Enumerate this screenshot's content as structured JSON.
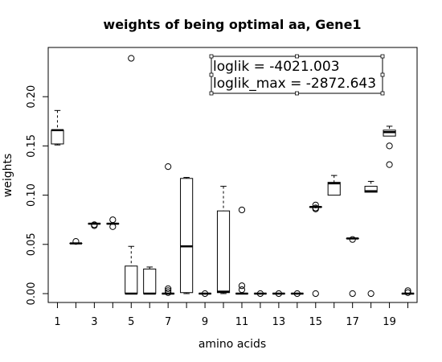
{
  "chart_data": {
    "type": "boxplot",
    "title": "weights of being optimal aa, Gene1",
    "xlabel": "amino acids",
    "ylabel": "weights",
    "xlim": [
      0.5,
      20.5
    ],
    "ylim": [
      -0.009,
      0.25
    ],
    "x_ticks": [
      1,
      2,
      3,
      4,
      5,
      6,
      7,
      8,
      9,
      10,
      11,
      12,
      13,
      14,
      15,
      16,
      17,
      18,
      19,
      20
    ],
    "x_tick_labels": [
      "1",
      "3",
      "5",
      "7",
      "9",
      "11",
      "13",
      "15",
      "17",
      "19"
    ],
    "x_tick_label_positions": [
      1,
      3,
      5,
      7,
      9,
      11,
      13,
      15,
      17,
      19
    ],
    "y_ticks": [
      0.0,
      0.05,
      0.1,
      0.15,
      0.2
    ],
    "y_tick_labels": [
      "0.00",
      "0.05",
      "0.10",
      "0.15",
      "0.20"
    ],
    "grid": false,
    "annotations": [
      {
        "text": "loglik = -4021.003"
      },
      {
        "text": "loglik_max = -2872.643"
      }
    ],
    "boxes": [
      {
        "x": 1,
        "min": 0.151,
        "q1": 0.152,
        "median": 0.166,
        "q3": 0.166,
        "max": 0.186,
        "outliers": []
      },
      {
        "x": 2,
        "min": 0.051,
        "q1": 0.051,
        "median": 0.051,
        "q3": 0.051,
        "max": 0.051,
        "outliers": [
          0.053
        ]
      },
      {
        "x": 3,
        "min": 0.071,
        "q1": 0.071,
        "median": 0.071,
        "q3": 0.071,
        "max": 0.071,
        "outliers": [
          0.07,
          0.069
        ]
      },
      {
        "x": 4,
        "min": 0.071,
        "q1": 0.071,
        "median": 0.071,
        "q3": 0.071,
        "max": 0.071,
        "outliers": [
          0.075,
          0.068
        ]
      },
      {
        "x": 5,
        "min": 0.0,
        "q1": 0.0,
        "median": 0.0,
        "q3": 0.028,
        "max": 0.048,
        "outliers": [
          0.239
        ]
      },
      {
        "x": 6,
        "min": 0.0,
        "q1": 0.0,
        "median": 0.0,
        "q3": 0.025,
        "max": 0.027,
        "outliers": []
      },
      {
        "x": 7,
        "min": 0.0,
        "q1": 0.0,
        "median": 0.0,
        "q3": 0.0,
        "max": 0.0,
        "outliers": [
          0.129,
          0.005,
          0.003,
          0.001
        ]
      },
      {
        "x": 8,
        "min": 0.0,
        "q1": 0.001,
        "median": 0.048,
        "q3": 0.117,
        "max": 0.118,
        "outliers": []
      },
      {
        "x": 9,
        "min": 0.0,
        "q1": 0.0,
        "median": 0.0,
        "q3": 0.0,
        "max": 0.0,
        "outliers": [
          0.0
        ]
      },
      {
        "x": 10,
        "min": 0.0,
        "q1": 0.001,
        "median": 0.002,
        "q3": 0.084,
        "max": 0.109,
        "outliers": []
      },
      {
        "x": 11,
        "min": 0.0,
        "q1": 0.0,
        "median": 0.0,
        "q3": 0.0,
        "max": 0.0,
        "outliers": [
          0.085,
          0.008,
          0.004
        ]
      },
      {
        "x": 12,
        "min": 0.0,
        "q1": 0.0,
        "median": 0.0,
        "q3": 0.0,
        "max": 0.0,
        "outliers": [
          0.0
        ]
      },
      {
        "x": 13,
        "min": 0.0,
        "q1": 0.0,
        "median": 0.0,
        "q3": 0.0,
        "max": 0.0,
        "outliers": [
          0.0
        ]
      },
      {
        "x": 14,
        "min": 0.0,
        "q1": 0.0,
        "median": 0.0,
        "q3": 0.0,
        "max": 0.0,
        "outliers": [
          0.0
        ]
      },
      {
        "x": 15,
        "min": 0.088,
        "q1": 0.088,
        "median": 0.088,
        "q3": 0.088,
        "max": 0.088,
        "outliers": [
          0.09,
          0.087,
          0.086,
          0.0
        ]
      },
      {
        "x": 16,
        "min": 0.1,
        "q1": 0.1,
        "median": 0.112,
        "q3": 0.113,
        "max": 0.12,
        "outliers": []
      },
      {
        "x": 17,
        "min": 0.056,
        "q1": 0.056,
        "median": 0.056,
        "q3": 0.056,
        "max": 0.056,
        "outliers": [
          0.055,
          0.0
        ]
      },
      {
        "x": 18,
        "min": 0.103,
        "q1": 0.103,
        "median": 0.104,
        "q3": 0.109,
        "max": 0.114,
        "outliers": [
          0.0
        ]
      },
      {
        "x": 19,
        "min": 0.16,
        "q1": 0.16,
        "median": 0.164,
        "q3": 0.166,
        "max": 0.17,
        "outliers": [
          0.15,
          0.131
        ]
      },
      {
        "x": 20,
        "min": 0.0,
        "q1": 0.0,
        "median": 0.0,
        "q3": 0.0,
        "max": 0.0,
        "outliers": [
          0.003,
          0.001
        ]
      }
    ]
  }
}
